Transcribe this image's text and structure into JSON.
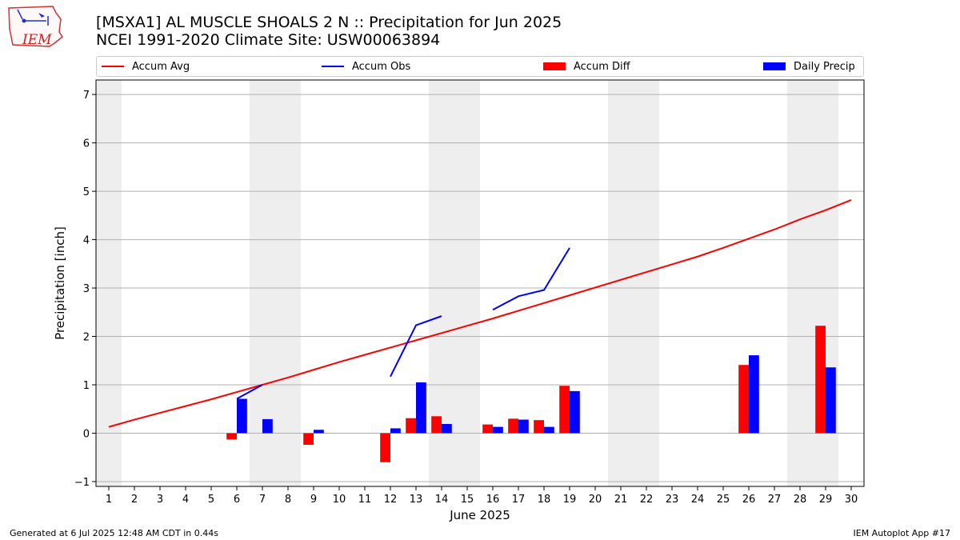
{
  "header": {
    "title_line1": "[MSXA1] AL MUSCLE SHOALS 2 N :: Precipitation for Jun 2025",
    "title_line2": "NCEI 1991-2020 Climate Site: USW00063894",
    "logo_text": "IEM"
  },
  "footer": {
    "left": "Generated at 6 Jul 2025 12:48 AM CDT in 0.44s",
    "right": "IEM Autoplot App #17"
  },
  "colors": {
    "accum_avg": "#ff0000",
    "accum_obs": "#0000ff",
    "accum_diff": "#ff0000",
    "daily_precip": "#0000ff",
    "weekend_shade": "#eeeeee",
    "grid": "#b0b0b0"
  },
  "chart_data": {
    "type": "bar",
    "xlabel": "June 2025",
    "ylabel": "Precipitation [inch]",
    "xlim": [
      0.5,
      30.5
    ],
    "ylim": [
      -1.1,
      7.3
    ],
    "yticks": [
      -1,
      0,
      1,
      2,
      3,
      4,
      5,
      6,
      7
    ],
    "x": [
      1,
      2,
      3,
      4,
      5,
      6,
      7,
      8,
      9,
      10,
      11,
      12,
      13,
      14,
      15,
      16,
      17,
      18,
      19,
      20,
      21,
      22,
      23,
      24,
      25,
      26,
      27,
      28,
      29,
      30
    ],
    "weekend_days": [
      1,
      7,
      8,
      14,
      15,
      21,
      22,
      28,
      29
    ],
    "legend": {
      "placement": "top",
      "entries": [
        "Accum Avg",
        "Accum Obs",
        "Accum Diff",
        "Daily Precip"
      ]
    },
    "series": [
      {
        "name": "Accum Avg",
        "kind": "line",
        "values": [
          0.13,
          0.28,
          0.42,
          0.56,
          0.7,
          0.85,
          1.0,
          1.15,
          1.31,
          1.47,
          1.62,
          1.77,
          1.92,
          2.07,
          2.22,
          2.37,
          2.53,
          2.69,
          2.85,
          3.01,
          3.17,
          3.33,
          3.49,
          3.65,
          3.83,
          4.02,
          4.21,
          4.42,
          4.61,
          4.82
        ]
      },
      {
        "name": "Accum Obs",
        "kind": "line",
        "values": [
          null,
          null,
          null,
          null,
          null,
          0.71,
          1.0,
          null,
          null,
          null,
          null,
          1.17,
          2.23,
          2.42,
          null,
          2.55,
          2.83,
          2.96,
          3.83,
          null,
          null,
          null,
          null,
          null,
          null,
          null,
          null,
          null,
          null,
          null
        ]
      },
      {
        "name": "Accum Diff",
        "kind": "bar",
        "values": [
          0,
          0,
          0,
          0,
          0,
          -0.13,
          0,
          0,
          -0.24,
          0,
          0,
          -0.6,
          0.31,
          0.35,
          0,
          0.18,
          0.3,
          0.27,
          0.98,
          0,
          0,
          0,
          0,
          0,
          0,
          1.41,
          0,
          0,
          2.22,
          0
        ]
      },
      {
        "name": "Daily Precip",
        "kind": "bar",
        "values": [
          0,
          0,
          0,
          0,
          0,
          0.71,
          0.29,
          0,
          0.07,
          0,
          0,
          0.1,
          1.05,
          0.19,
          0,
          0.13,
          0.28,
          0.13,
          0.87,
          0,
          0,
          0,
          0,
          0,
          0,
          1.61,
          0,
          0,
          1.36,
          0
        ]
      }
    ]
  }
}
